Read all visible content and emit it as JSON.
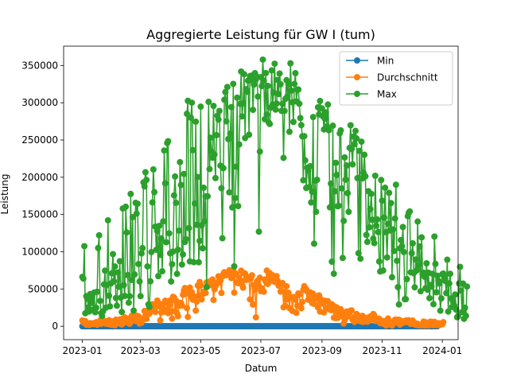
{
  "chart_data": {
    "type": "line",
    "title": "Aggregierte Leistung für GW I (tum)",
    "xlabel": "Datum",
    "ylabel": "Leistung",
    "x_range": [
      "2022-12-13",
      "2024-01-17"
    ],
    "ylim": [
      -18000,
      376000
    ],
    "x_ticks": [
      "2023-01",
      "2023-03",
      "2023-05",
      "2023-07",
      "2023-09",
      "2023-11",
      "2024-01"
    ],
    "x_tick_dates": [
      "2023-01-01",
      "2023-03-01",
      "2023-05-01",
      "2023-07-01",
      "2023-09-01",
      "2023-11-01",
      "2024-01-01"
    ],
    "y_ticks": [
      0,
      50000,
      100000,
      150000,
      200000,
      250000,
      300000,
      350000
    ],
    "y_tick_labels": [
      "0",
      "50000",
      "100000",
      "150000",
      "200000",
      "250000",
      "300000",
      "350000"
    ],
    "grid": false,
    "legend_position": "top-right",
    "date_start": "2023-01-01",
    "date_end": "2023-12-31",
    "series": [
      {
        "name": "Min",
        "color": "#1f77b4",
        "values": [
          0,
          0,
          0,
          0,
          0,
          0,
          0,
          0,
          0,
          0,
          0,
          0,
          0,
          0,
          0,
          0,
          0,
          0,
          0,
          0,
          0,
          0,
          0,
          0,
          0,
          0,
          0,
          0,
          0,
          0,
          0,
          0,
          0,
          0,
          0,
          0,
          0,
          0,
          0,
          0,
          0,
          0,
          0,
          0,
          0,
          0,
          0,
          0,
          0,
          0,
          0,
          0,
          0,
          0,
          0,
          0,
          0,
          0,
          0,
          0,
          0,
          0,
          0,
          0,
          0,
          0,
          0,
          0,
          0,
          0,
          0,
          0,
          0,
          0,
          0,
          0,
          0,
          0,
          0,
          0,
          0,
          0,
          0,
          0,
          0,
          0,
          0,
          0,
          0,
          0,
          0,
          0,
          0,
          0,
          0,
          0,
          0,
          0,
          0,
          0,
          0,
          0,
          0,
          0,
          0,
          0,
          0,
          0,
          0,
          0,
          0,
          0,
          0,
          0,
          0,
          0,
          0,
          0,
          0,
          0,
          0,
          0,
          0,
          0,
          0,
          0,
          0,
          0,
          0,
          0,
          0,
          0,
          0,
          0,
          0,
          0,
          0,
          0,
          0,
          0,
          0,
          0,
          0,
          0,
          0,
          0,
          0,
          0,
          0,
          0,
          0,
          0,
          0,
          0,
          0,
          0,
          0,
          0,
          0,
          0,
          0,
          0,
          0,
          0,
          0,
          0,
          0,
          0,
          0,
          0,
          0,
          0,
          0,
          0,
          0,
          0,
          0,
          0,
          0,
          0,
          0,
          0,
          0,
          0,
          0,
          0,
          0,
          0,
          0,
          0,
          0,
          0,
          0,
          0,
          0,
          0,
          0,
          0,
          0,
          0,
          0,
          0,
          0,
          0,
          0,
          0,
          0,
          0,
          0,
          0,
          0,
          0,
          0,
          0,
          0,
          0,
          0,
          0,
          0,
          0,
          0,
          0,
          0,
          0,
          0,
          0,
          0,
          0,
          0,
          0,
          0,
          0,
          0,
          0,
          0,
          0,
          0,
          0,
          0,
          0,
          0,
          0,
          0,
          0,
          0,
          0,
          0,
          0,
          0,
          0,
          0,
          0,
          0,
          0,
          0,
          0,
          0,
          0,
          0,
          0,
          0,
          0,
          0,
          0,
          0,
          0,
          0,
          0,
          0,
          0,
          0,
          0,
          0,
          0,
          0,
          0,
          0,
          0,
          0,
          0,
          0,
          0,
          0,
          0,
          0,
          0,
          0,
          0,
          0,
          0,
          0,
          0,
          0,
          0,
          0,
          0,
          0,
          0,
          0,
          0,
          0,
          0,
          0,
          0,
          0,
          0,
          0,
          0,
          0,
          0,
          0,
          0,
          0,
          0,
          0,
          0,
          0,
          0,
          0,
          0,
          0,
          0,
          0,
          0,
          0,
          0,
          0,
          0,
          0,
          0,
          0,
          0,
          0,
          0,
          0,
          0,
          0,
          0,
          0,
          0,
          0,
          0,
          0,
          0,
          0,
          0,
          0,
          0,
          0,
          0,
          0,
          0,
          0,
          0,
          0,
          0,
          0,
          0,
          0,
          0,
          0
        ]
      },
      {
        "name": "Durchschnitt",
        "color": "#ff7f0e",
        "values": [
          7800,
          5100,
          6800,
          6900,
          2200,
          3500,
          3600,
          1900,
          4200,
          3500,
          3700,
          2900,
          4300,
          4700,
          5300,
          2100,
          3800,
          5100,
          7800,
          3300,
          6800,
          7400,
          5200,
          7000,
          3500,
          6200,
          3200,
          8200,
          2400,
          3500,
          2100,
          6600,
          6900,
          1300,
          8800,
          5900,
          5400,
          4100,
          9200,
          4600,
          2400,
          10400,
          4700,
          12000,
          7400,
          9600,
          5100,
          10200,
          3300,
          5600,
          14000,
          10500,
          16500,
          12000,
          7000,
          14200,
          11100,
          13400,
          3700,
          10700,
          4800,
          8200,
          10500,
          20500,
          14100,
          9800,
          15600,
          21900,
          16900,
          23700,
          22300,
          29700,
          28700,
          24500,
          19300,
          26700,
          34500,
          26800,
          30400,
          7800,
          18500,
          29700,
          23700,
          19500,
          34300,
          31900,
          22500,
          17600,
          28400,
          34600,
          20000,
          10200,
          39500,
          38600,
          20200,
          34200,
          17400,
          13500,
          27500,
          31500,
          31000,
          27800,
          42300,
          48000,
          51300,
          43700,
          24400,
          12500,
          48400,
          52000,
          39400,
          45700,
          35700,
          38200,
          39700,
          21000,
          33100,
          54600,
          41300,
          59400,
          54700,
          36000,
          43400,
          46300,
          44600,
          44700,
          58800,
          53600,
          57200,
          60000,
          55200,
          57500,
          62800,
          35300,
          49600,
          53700,
          57800,
          57400,
          67000,
          62300,
          61200,
          44700,
          67100,
          70200,
          72500,
          68300,
          68800,
          71200,
          72900,
          75200,
          68200,
          64700,
          65500,
          75500,
          45100,
          71200,
          69700,
          58700,
          57800,
          65300,
          62300,
          74600,
          55700,
          51800,
          71100,
          70700,
          62100,
          64700,
          65900,
          63700,
          36100,
          64600,
          68400,
          29100,
          55200,
          49400,
          12000,
          60100,
          61500,
          54300,
          65200,
          47100,
          50900,
          48100,
          46400,
          62700,
          60000,
          74700,
          56800,
          63600,
          71400,
          67600,
          61200,
          68300,
          64300,
          59600,
          60600,
          67300,
          61000,
          54600,
          56800,
          46600,
          47100,
          57900,
          25500,
          45900,
          27200,
          53700,
          35900,
          44900,
          24400,
          38500,
          38700,
          20500,
          39100,
          38800,
          35600,
          18100,
          27600,
          44000,
          42600,
          28100,
          24200,
          32600,
          49000,
          53800,
          50600,
          49800,
          46500,
          35600,
          40700,
          45600,
          43900,
          31200,
          43600,
          30000,
          37900,
          39000,
          37600,
          25300,
          41400,
          19700,
          36200,
          30400,
          31300,
          18600,
          34200,
          24600,
          25000,
          33600,
          22900,
          26100,
          21600,
          29500,
          26700,
          11400,
          26400,
          11000,
          25100,
          11200,
          21200,
          15600,
          22900,
          19400,
          13400,
          3700,
          8400,
          17600,
          19800,
          13300,
          17800,
          18800,
          21000,
          21300,
          8600,
          11800,
          5800,
          7400,
          16400,
          15100,
          8400,
          7400,
          7900,
          6300,
          13900,
          5900,
          10200,
          8300,
          11300,
          6100,
          8600,
          7400,
          13200,
          13400,
          13000,
          16500,
          14800,
          7200,
          7400,
          9800,
          8700,
          10100,
          4200,
          6400,
          7000,
          3400,
          6900,
          3700,
          1100,
          7400,
          10400,
          2700,
          2500,
          5300,
          1000,
          4900,
          4900,
          8700,
          8900,
          4700,
          7200,
          8700,
          2200,
          7500,
          4800,
          4600,
          5500,
          6800,
          7600,
          7900,
          5300,
          8000,
          5200,
          3200,
          6200,
          7600,
          3500,
          3500,
          2000,
          3800,
          1700,
          2400,
          1500,
          1200,
          1400,
          1900,
          6300,
          1100,
          5400,
          3200,
          1400,
          1000,
          5400,
          6100,
          1900,
          5800,
          1500,
          5900,
          4100,
          1600,
          3500,
          4100,
          1300,
          2400,
          3900,
          2700,
          5500
        ]
      },
      {
        "name": "Max",
        "color": "#2ca02c",
        "values": [
          66200,
          64000,
          107500,
          17400,
          40400,
          37300,
          25100,
          19800,
          43300,
          31400,
          39400,
          22200,
          45200,
          18800,
          24900,
          46300,
          105000,
          122100,
          34100,
          17600,
          13800,
          20100,
          56100,
          74600,
          25000,
          55600,
          142200,
          41000,
          26700,
          57400,
          71100,
          96800,
          60300,
          80300,
          37900,
          27600,
          72200,
          53000,
          87300,
          38400,
          19200,
          158100,
          55300,
          40700,
          160400,
          125900,
          68600,
          31600,
          40300,
          177600,
          62200,
          146400,
          21000,
          69500,
          165600,
          151200,
          164500,
          83500,
          60200,
          40400,
          97800,
          104900,
          193100,
          187800,
          206700,
          196500,
          80300,
          29300,
          26000,
          60300,
          99500,
          166200,
          210500,
          180000,
          133700,
          102700,
          127900,
          67300,
          134700,
          95900,
          117900,
          73800,
          140800,
          235900,
          191800,
          112800,
          246000,
          248400,
          124700,
          97900,
          60100,
          83300,
          100300,
          175700,
          201000,
          165600,
          70300,
          102700,
          128300,
          220300,
          189600,
          82800,
          96500,
          204400,
          113100,
          117000,
          285200,
          302600,
          131700,
          87000,
          280000,
          300100,
          236400,
          86000,
          164800,
          274600,
          136100,
          200400,
          85900,
          114600,
          294800,
          135500,
          104600,
          185900,
          140800,
          174300,
          52500,
          174500,
          301200,
          211000,
          253100,
          234300,
          226200,
          295800,
          230600,
          198900,
          256500,
          282700,
          277400,
          289000,
          215600,
          185300,
          118100,
          212200,
          304000,
          314400,
          275000,
          321100,
          251300,
          179700,
          258600,
          294200,
          159500,
          325300,
          80400,
          172100,
          214200,
          306800,
          161300,
          244000,
          298500,
          341900,
          281700,
          299300,
          338400,
          252600,
          318200,
          314800,
          329700,
          257100,
          335800,
          330300,
          336500,
          290500,
          324300,
          339700,
          331400,
          334900,
          308300,
          127000,
          234500,
          334400,
          322500,
          357900,
          329700,
          277900,
          339800,
          284100,
          322600,
          273300,
          271600,
          293500,
          343400,
          297700,
          313700,
          352400,
          290800,
          299000,
          330600,
          311600,
          339200,
          324900,
          289100,
          298600,
          226000,
          289000,
          305400,
          330300,
          308700,
          324800,
          261100,
          352900,
          316200,
          300600,
          274300,
          325200,
          339700,
          301800,
          317500,
          317800,
          298700,
          279500,
          270000,
          254900,
          195900,
          255200,
          222600,
          185600,
          212700,
          208900,
          186800,
          214800,
          166200,
          180600,
          280800,
          110900,
          195300,
          153700,
          196600,
          293900,
          284200,
          302400,
          292500,
          292400,
          281600,
          264200,
          278600,
          287000,
          268100,
          297600,
          263100,
          159600,
          191600,
          86600,
          269200,
          70500,
          181200,
          219300,
          203100,
          161100,
          161700,
          258900,
          263000,
          185000,
          91700,
          141500,
          226600,
          196700,
          215800,
          178600,
          153600,
          239400,
          269800,
          237800,
          217300,
          254700,
          244300,
          262200,
          252100,
          198900,
          98100,
          235400,
          90700,
          247800,
          198500,
          205900,
          230200,
          201300,
          122600,
          113300,
          181300,
          132800,
          157200,
          177700,
          142900,
          117700,
          111600,
          202000,
          134900,
          143300,
          126400,
          86900,
          73500,
          196300,
          168600,
          74900,
          145800,
          185900,
          126300,
          92400,
          137400,
          179000,
          128500,
          165300,
          65800,
          130000,
          101000,
          144600,
          190000,
          87900,
          52500,
          29200,
          104400,
          115700,
          107500,
          133200,
          99600,
          36300,
          36300,
          63300,
          147800,
          152400,
          154100,
          72400,
          98100,
          111300,
          71200,
          52300,
          89600,
          74800,
          140500,
          81500,
          107000,
          47000,
          119300,
          70300,
          71900,
          66500,
          51100,
          84500,
          49100,
          71800,
          37700,
          55400,
          53300,
          70400,
          29600,
          120400,
          83700,
          45600,
          67800,
          61100,
          57300,
          20900,
          37400,
          69900,
          70700,
          64900,
          60800,
          44400,
          89300,
          19700,
          57500,
          70400,
          37400,
          25900,
          32600,
          27900,
          42600,
          22300,
          12100,
          13400,
          57400,
          79700,
          47700,
          18900,
          57300,
          10000,
          24800,
          14000,
          53300
        ]
      }
    ]
  }
}
